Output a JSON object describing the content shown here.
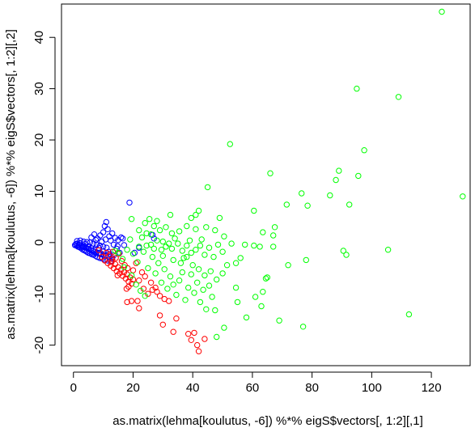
{
  "chart_data": {
    "type": "scatter",
    "title": "",
    "xlabel": "as.matrix(lehma[koulutus, -6]) %*% eigS$vectors[, 1:2][,1]",
    "ylabel": "as.matrix(lehma[koulutus, -6]) %*% eigS$vectors[, 1:2][,2]",
    "xlim": [
      -4,
      133
    ],
    "ylim": [
      -24,
      46.5
    ],
    "xticks": [
      0,
      20,
      40,
      60,
      80,
      100,
      120
    ],
    "yticks": [
      -20,
      -10,
      0,
      10,
      20,
      30,
      40
    ],
    "grid": false,
    "series": [
      {
        "color": "#0000ff",
        "points": [
          [
            0.5,
            -0.5
          ],
          [
            0.8,
            -0.3
          ],
          [
            1.0,
            -0.6
          ],
          [
            1.2,
            -0.2
          ],
          [
            1.5,
            -0.8
          ],
          [
            1.7,
            -0.4
          ],
          [
            2.0,
            -0.9
          ],
          [
            2.2,
            -0.1
          ],
          [
            2.5,
            -1.1
          ],
          [
            2.7,
            -0.6
          ],
          [
            3.0,
            -1.3
          ],
          [
            3.2,
            -0.7
          ],
          [
            3.5,
            -1.5
          ],
          [
            3.7,
            -0.9
          ],
          [
            4.0,
            -1.6
          ],
          [
            4.2,
            -1.0
          ],
          [
            4.5,
            -1.8
          ],
          [
            4.8,
            -1.2
          ],
          [
            5.0,
            -2.0
          ],
          [
            5.3,
            -1.3
          ],
          [
            5.6,
            -2.1
          ],
          [
            5.9,
            -1.5
          ],
          [
            6.2,
            -2.3
          ],
          [
            6.5,
            -1.6
          ],
          [
            6.8,
            -2.4
          ],
          [
            7.1,
            -1.8
          ],
          [
            7.4,
            -2.6
          ],
          [
            7.7,
            -2.0
          ],
          [
            8.0,
            -2.8
          ],
          [
            8.4,
            -2.1
          ],
          [
            8.8,
            -3.0
          ],
          [
            9.2,
            -2.3
          ],
          [
            9.6,
            -3.1
          ],
          [
            10.0,
            -2.4
          ],
          [
            10.5,
            -3.3
          ],
          [
            11.0,
            -2.6
          ],
          [
            11.5,
            -3.5
          ],
          [
            12.0,
            -2.8
          ],
          [
            12.5,
            -3.6
          ],
          [
            13.0,
            -3.0
          ],
          [
            1.2,
            0.3
          ],
          [
            2.3,
            0.4
          ],
          [
            3.4,
            0.2
          ],
          [
            4.5,
            0.1
          ],
          [
            5.6,
            0.0
          ],
          [
            6.7,
            -0.2
          ],
          [
            7.8,
            -0.4
          ],
          [
            8.9,
            -0.6
          ],
          [
            10.0,
            -0.8
          ],
          [
            11.1,
            -1.0
          ],
          [
            6.0,
            1.0
          ],
          [
            7.0,
            1.6
          ],
          [
            8.0,
            0.8
          ],
          [
            9.0,
            1.4
          ],
          [
            10.0,
            2.0
          ],
          [
            10.5,
            3.2
          ],
          [
            11.0,
            4.0
          ],
          [
            11.5,
            2.6
          ],
          [
            12.0,
            1.2
          ],
          [
            12.5,
            0.4
          ],
          [
            13.0,
            1.8
          ],
          [
            13.5,
            -0.4
          ],
          [
            14.0,
            0.9
          ],
          [
            14.5,
            -1.2
          ],
          [
            15.0,
            0.5
          ],
          [
            15.5,
            -2.0
          ],
          [
            16.0,
            1.0
          ],
          [
            9.5,
            0.2
          ],
          [
            8.5,
            -1.0
          ],
          [
            7.5,
            0.5
          ],
          [
            18.8,
            7.8
          ],
          [
            26.5,
            1.5
          ],
          [
            27.0,
            0.8
          ],
          [
            20.5,
            -2.0
          ],
          [
            22.0,
            -1.0
          ],
          [
            17.0,
            -0.5
          ],
          [
            16.5,
            0.8
          ],
          [
            14.8,
            -0.7
          ],
          [
            11.8,
            -1.8
          ],
          [
            10.8,
            0.6
          ],
          [
            4.0,
            -0.3
          ],
          [
            3.0,
            -0.9
          ],
          [
            2.0,
            -0.5
          ],
          [
            5.0,
            -0.7
          ],
          [
            6.0,
            -1.1
          ],
          [
            7.0,
            -1.4
          ],
          [
            9.0,
            -2.0
          ],
          [
            10.0,
            -1.7
          ],
          [
            12.0,
            -2.2
          ],
          [
            13.5,
            -2.5
          ]
        ]
      },
      {
        "color": "#ff0000",
        "points": [
          [
            8.5,
            -1.5
          ],
          [
            9.5,
            -2.8
          ],
          [
            10.5,
            -3.5
          ],
          [
            11.5,
            -4.0
          ],
          [
            12.5,
            -4.5
          ],
          [
            13.0,
            -3.2
          ],
          [
            13.5,
            -5.0
          ],
          [
            14.0,
            -4.2
          ],
          [
            14.5,
            -5.6
          ],
          [
            15.0,
            -4.8
          ],
          [
            15.5,
            -6.0
          ],
          [
            16.0,
            -5.3
          ],
          [
            16.5,
            -6.5
          ],
          [
            17.0,
            -5.8
          ],
          [
            17.5,
            -7.0
          ],
          [
            18.0,
            -6.2
          ],
          [
            18.5,
            -7.6
          ],
          [
            19.0,
            -6.8
          ],
          [
            19.5,
            -8.0
          ],
          [
            20.0,
            -7.2
          ],
          [
            12.0,
            -2.5
          ],
          [
            13.2,
            -1.8
          ],
          [
            14.2,
            -3.0
          ],
          [
            15.2,
            -2.2
          ],
          [
            16.2,
            -3.6
          ],
          [
            17.2,
            -4.4
          ],
          [
            18.2,
            -5.0
          ],
          [
            11.0,
            -2.0
          ],
          [
            12.8,
            -3.8
          ],
          [
            14.8,
            -6.4
          ],
          [
            18.5,
            -8.6
          ],
          [
            17.8,
            -9.0
          ],
          [
            18.0,
            -11.6
          ],
          [
            19.5,
            -11.4
          ],
          [
            21.5,
            -11.4
          ],
          [
            22.0,
            -12.8
          ],
          [
            23.5,
            -9.0
          ],
          [
            25.0,
            -10.0
          ],
          [
            26.5,
            -9.2
          ],
          [
            27.5,
            -8.8
          ],
          [
            28.0,
            -9.6
          ],
          [
            29.0,
            -10.4
          ],
          [
            30.5,
            -11.0
          ],
          [
            32.0,
            -11.4
          ],
          [
            29.0,
            -14.2
          ],
          [
            30.0,
            -16.0
          ],
          [
            33.5,
            -17.4
          ],
          [
            34.5,
            -14.8
          ],
          [
            38.5,
            -17.8
          ],
          [
            39.5,
            -19.0
          ],
          [
            40.5,
            -17.6
          ],
          [
            41.5,
            -20.0
          ],
          [
            42.0,
            -21.2
          ],
          [
            44.0,
            -18.8
          ],
          [
            24.0,
            -6.6
          ],
          [
            22.0,
            -7.4
          ],
          [
            21.0,
            -4.0
          ],
          [
            20.0,
            -5.4
          ],
          [
            23.0,
            -5.8
          ],
          [
            26.0,
            -7.8
          ]
        ]
      },
      {
        "color": "#00ff00",
        "points": [
          [
            123.5,
            45.0
          ],
          [
            95.0,
            30.0
          ],
          [
            109.0,
            28.4
          ],
          [
            97.5,
            18.0
          ],
          [
            130.5,
            9.0
          ],
          [
            52.5,
            19.2
          ],
          [
            66.0,
            13.5
          ],
          [
            89.0,
            14.0
          ],
          [
            88.0,
            12.2
          ],
          [
            95.5,
            13.0
          ],
          [
            76.5,
            9.6
          ],
          [
            86.0,
            9.2
          ],
          [
            92.5,
            7.4
          ],
          [
            78.5,
            7.2
          ],
          [
            71.5,
            7.4
          ],
          [
            60.5,
            6.2
          ],
          [
            67.5,
            3.0
          ],
          [
            67.0,
            1.4
          ],
          [
            63.5,
            2.0
          ],
          [
            45.0,
            10.8
          ],
          [
            42.0,
            6.2
          ],
          [
            41.0,
            5.4
          ],
          [
            39.5,
            4.8
          ],
          [
            49.0,
            4.8
          ],
          [
            32.5,
            5.4
          ],
          [
            25.5,
            4.6
          ],
          [
            27.0,
            3.2
          ],
          [
            28.0,
            4.2
          ],
          [
            19.5,
            4.6
          ],
          [
            24.0,
            3.8
          ],
          [
            22.0,
            2.4
          ],
          [
            23.0,
            1.0
          ],
          [
            24.5,
            1.8
          ],
          [
            26.0,
            -0.4
          ],
          [
            28.0,
            0.4
          ],
          [
            30.0,
            0.2
          ],
          [
            31.0,
            -0.8
          ],
          [
            33.0,
            -1.2
          ],
          [
            35.0,
            -0.2
          ],
          [
            36.5,
            -1.6
          ],
          [
            38.0,
            -0.6
          ],
          [
            39.5,
            -2.0
          ],
          [
            41.0,
            -1.4
          ],
          [
            42.5,
            -0.6
          ],
          [
            44.0,
            -2.4
          ],
          [
            45.5,
            -1.0
          ],
          [
            47.0,
            -2.8
          ],
          [
            48.5,
            -0.4
          ],
          [
            50.0,
            -1.8
          ],
          [
            51.5,
            -4.4
          ],
          [
            53.0,
            -0.2
          ],
          [
            54.5,
            -4.0
          ],
          [
            56.0,
            -3.0
          ],
          [
            60.5,
            -0.6
          ],
          [
            62.5,
            -0.8
          ],
          [
            57.5,
            -0.4
          ],
          [
            50.5,
            1.2
          ],
          [
            47.5,
            2.4
          ],
          [
            44.5,
            3.0
          ],
          [
            41.0,
            2.6
          ],
          [
            38.0,
            3.2
          ],
          [
            35.5,
            2.2
          ],
          [
            33.0,
            1.8
          ],
          [
            31.0,
            3.0
          ],
          [
            29.0,
            2.4
          ],
          [
            20.0,
            -2.2
          ],
          [
            21.5,
            -3.8
          ],
          [
            23.5,
            -1.8
          ],
          [
            25.0,
            -5.0
          ],
          [
            26.5,
            -2.8
          ],
          [
            27.5,
            -6.0
          ],
          [
            28.5,
            -4.0
          ],
          [
            29.5,
            -7.8
          ],
          [
            30.5,
            -5.2
          ],
          [
            31.5,
            -9.0
          ],
          [
            32.5,
            -6.6
          ],
          [
            33.5,
            -8.2
          ],
          [
            34.5,
            -10.2
          ],
          [
            35.5,
            -7.4
          ],
          [
            36.5,
            -5.8
          ],
          [
            37.5,
            -11.2
          ],
          [
            38.5,
            -8.8
          ],
          [
            39.5,
            -6.2
          ],
          [
            40.5,
            -9.8
          ],
          [
            41.5,
            -7.8
          ],
          [
            42.5,
            -11.6
          ],
          [
            43.5,
            -9.2
          ],
          [
            44.5,
            -13.0
          ],
          [
            45.5,
            -8.4
          ],
          [
            46.5,
            -10.6
          ],
          [
            47.5,
            -13.2
          ],
          [
            48.0,
            -18.4
          ],
          [
            50.5,
            -16.6
          ],
          [
            54.5,
            -8.8
          ],
          [
            55.0,
            -11.6
          ],
          [
            58.0,
            -14.6
          ],
          [
            61.0,
            -10.6
          ],
          [
            63.0,
            -12.4
          ],
          [
            65.0,
            -6.8
          ],
          [
            69.0,
            -15.2
          ],
          [
            77.0,
            -16.4
          ],
          [
            78.0,
            -3.4
          ],
          [
            90.5,
            -1.6
          ],
          [
            91.5,
            -2.4
          ],
          [
            105.5,
            -1.4
          ],
          [
            112.5,
            -14.0
          ],
          [
            63.5,
            -9.6
          ],
          [
            64.5,
            -7.0
          ],
          [
            67.0,
            -0.8
          ],
          [
            72.0,
            -4.4
          ],
          [
            36.0,
            -4.0
          ],
          [
            37.0,
            -3.0
          ],
          [
            38.0,
            -2.8
          ],
          [
            33.5,
            -3.4
          ],
          [
            30.0,
            -2.6
          ],
          [
            27.0,
            -1.2
          ],
          [
            24.5,
            -0.6
          ],
          [
            22.0,
            -0.8
          ],
          [
            19.0,
            0.6
          ],
          [
            18.0,
            -1.4
          ],
          [
            16.5,
            -3.2
          ],
          [
            15.0,
            -2.0
          ],
          [
            14.0,
            -1.6
          ],
          [
            17.0,
            -4.8
          ],
          [
            19.5,
            -6.4
          ],
          [
            21.0,
            -8.2
          ],
          [
            22.5,
            -9.4
          ],
          [
            24.0,
            -10.4
          ],
          [
            40.0,
            -4.4
          ],
          [
            42.0,
            -5.2
          ],
          [
            44.0,
            -6.4
          ],
          [
            46.0,
            -5.6
          ],
          [
            48.0,
            -7.2
          ],
          [
            50.0,
            -6.0
          ],
          [
            39.0,
            0.4
          ],
          [
            43.0,
            0.6
          ],
          [
            34.0,
            0.8
          ],
          [
            32.0,
            -0.2
          ],
          [
            29.5,
            -1.4
          ],
          [
            26.0,
            1.6
          ]
        ]
      }
    ]
  }
}
